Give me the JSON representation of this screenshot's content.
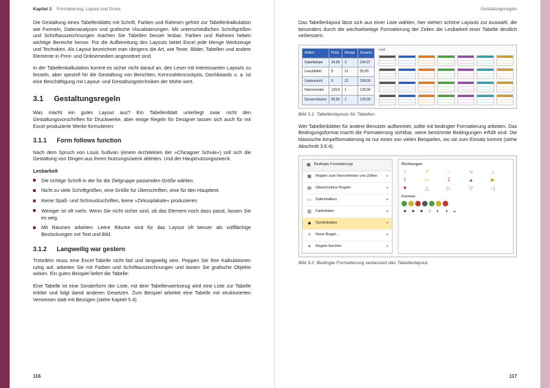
{
  "colors": {
    "accent": "#7b2d4f",
    "edge_right": "#d5b5c4"
  },
  "left": {
    "runhead_chapter": "Kapitel 3",
    "runhead_title": "Formatierung, Layout und Druck",
    "intro1": "Die Gestaltung eines Tabellenblatts mit Schrift, Farben und Rahmen gehört zur Tabellenkalkulation wie Formeln, Datenanalysen und grafische Visualisierungen. Mit unterschiedlichen Schriftgrößen und Schriftauszeichnungen machen Sie Tabellen besser lesbar, Farben und Rahmen heben wichtige Bereiche hervor. Für die Aufbereitung des Layouts bietet Excel jede Menge Werkzeuge und Techniken. Als Layout bezeichnet man übrigens die Art, wie Texte, Bilder, Tabellen und andere Elemente in Print- und Onlinemedien angeordnet sind.",
    "intro2": "In der Tabellenkalkulation kommt es sicher nicht darauf an, den Leser mit interessanten Layouts zu fesseln, aber speziell für die Gestaltung von Berichten, Kennzahlencockpits, Dashboards u. a. ist eine Beschäftigung mit Layout- und Gestaltungstechniken der Mühe wert.",
    "h31_num": "3.1",
    "h31": "Gestaltungsregeln",
    "p31": "Was macht ein gutes Layout aus? Ein Tabellenblatt unterliegt zwar nicht den Gestaltungsvorschriften für Druckwerke, aber einige Regeln für Designer lassen sich auch für mit Excel produzierte Werke formulieren:",
    "h311_num": "3.1.1",
    "h311": "Form follows function",
    "p311": "Nach dem Spruch von Louis Sullivan (einem Architekten der »Chicagoer Schule«) soll sich die Gestaltung von Dingen aus ihrem Nutzungszweck ableiten. Und der Hauptnutzungszweck:",
    "lesbarkeit": "Lesbarkeit",
    "rules": [
      "Die richtige Schrift in der für die Zielgruppe passenden Größe wählen.",
      "Nicht zu viele Schriftgrößen, eine Größe für Überschriften, eine für den Haupttext.",
      "Keine Spaß- und Schmuckschriften, keine »Zirkusplakate« produzieren.",
      "Weniger ist oft mehr. Wenn Sie nicht sicher sind, ob das Element noch dazu passt, lassen Sie es weg.",
      "Mit Räumen arbeiten: Leere Räume sind für das Layout oft besser als vollflächige Bestückungen mit Text und Bild."
    ],
    "h312_num": "3.1.2",
    "h312": "Langweilig war gestern",
    "p312a": "Trotzdem muss eine Excel-Tabelle nicht fad und langweilig sein. Peppen Sie Ihre Kalkulationen ruhig auf, arbeiten Sie mit Farben und Schriftauszeichnungen und lassen Sie grafische Objekte wirken. Ein gutes Beispiel liefert die Tabelle:",
    "p312b": "Eine Tabelle ist eine Sonderform der Liste, mit dem Tabellenwerkzeug wird eine Liste zur Tabelle erklärt und folgt damit anderen Gesetzen. Zum Beispiel arbeitet eine Tabelle mit strukturierten Verweisen statt mit Bezügen (siehe Kapitel 5.4).",
    "page": "116"
  },
  "right": {
    "runhead": "Gestaltungsregeln",
    "intro": "Das Tabellenlayout lässt sich aus einer Liste wählen, hier stehen schöne Layouts zur Auswahl, die besonders durch die wechselseitige Formatierung der Zeilen die Lesbarkeit einer Tabelle deutlich verbessern.",
    "table": {
      "headers": [
        "Artikel",
        "Preis",
        "Menge",
        "Gesamt"
      ],
      "rows": [
        [
          "Kabellampe",
          "34,99",
          "3",
          "104,97"
        ],
        [
          "Leuchttafel",
          "5",
          "11",
          "55,00"
        ],
        [
          "Gartenstuhl",
          "9",
          "22",
          "198,00"
        ],
        [
          "Hammerstiel",
          "129,9",
          "1",
          "129,90"
        ],
        [
          "Dynamofackel",
          "69,95",
          "2",
          "139,90"
        ]
      ],
      "label_hell": "Hell"
    },
    "swatch_colors": [
      {
        "c": "#e8e8e8",
        "h": "#555"
      },
      {
        "c": "#e2ecf9",
        "h": "#2f5fb5"
      },
      {
        "c": "#fde7d6",
        "h": "#d77b2b"
      },
      {
        "c": "#e6f2e2",
        "h": "#4f9b47"
      },
      {
        "c": "#f4e2f2",
        "h": "#8b4f9b"
      },
      {
        "c": "#e2f2f4",
        "h": "#3c9bab"
      },
      {
        "c": "#f9eee2",
        "h": "#c99b3c"
      }
    ],
    "caption1": "Bild 3.1: Tabellenlayouts für Tabellen.",
    "p2": "Wer Tabellenblätter für andere Benutzer aufbereitet, sollte mit bedingter Formatierung arbeiten. Das Bedingungsformat macht die Formatierung sichtbar, wenn bestimmte Bedingungen erfüllt sind. Die klassische Ampelformatierung ist nur eines von vielen Beispielen, wo sie zum Einsatz kommt (siehe Abschnitt 3.6.4).",
    "menu": {
      "button": "Bedingte Formatierung",
      "items": [
        {
          "icon": "▦",
          "label": "Regeln zum Hervorheben von Zellen"
        },
        {
          "icon": "▤",
          "label": "Obere/untere Regeln"
        },
        {
          "icon": "▭",
          "label": "Datenbalken"
        },
        {
          "icon": "▥",
          "label": "Farbskalen"
        },
        {
          "icon": "◆",
          "label": "Symbolsätze",
          "sel": true
        },
        {
          "icon": "＋",
          "label": "Neue Regel…"
        },
        {
          "icon": "✕",
          "label": "Regeln löschen"
        }
      ]
    },
    "iconpanel": {
      "title1": "Richtungen",
      "arrows": [
        "↑",
        "↗",
        "→",
        "↘",
        "↓",
        "⇧",
        "⇨",
        "⇩",
        "▲",
        "▶",
        "▼",
        "△",
        "▷",
        "▽",
        "◁"
      ],
      "arrow_colors": [
        "#4f9b47",
        "#c9b52b",
        "#c9b52b",
        "#d77b2b",
        "#c0392b",
        "#4f9b47",
        "#c9b52b",
        "#c0392b",
        "#4f9b47",
        "#c9b52b",
        "#c0392b",
        "#888",
        "#888",
        "#888",
        "#888"
      ],
      "title2": "Formen",
      "dots": [
        "#4f9b47",
        "#c9b52b",
        "#c0392b",
        "#555",
        "#4f9b47",
        "#c9b52b",
        "#c0392b"
      ],
      "shapes": [
        "●",
        "●",
        "●",
        "○",
        "◐",
        "◑",
        "◒"
      ]
    },
    "caption2": "Bild 3.2: Bedingte Formatierung verbessert das Tabellenlayout.",
    "page": "117"
  }
}
